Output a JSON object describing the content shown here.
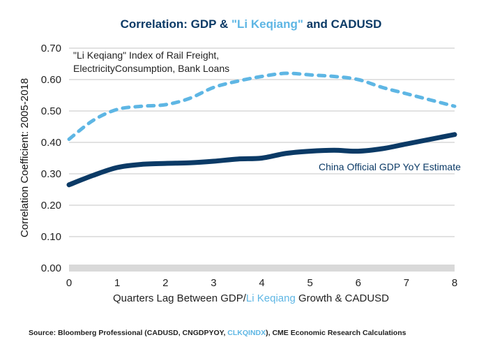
{
  "colors": {
    "dark_navy": "#0b3a66",
    "light_blue": "#5eb6e4",
    "grid": "#d9d9d9",
    "zero_band": "#d9d9d9",
    "text": "#222222"
  },
  "chart_data": {
    "type": "line",
    "title_parts": [
      {
        "text": "Correlation: GDP & ",
        "color": "dark_navy"
      },
      {
        "text": "\"Li Keqiang\"",
        "color": "light_blue"
      },
      {
        "text": " and CADUSD",
        "color": "dark_navy"
      }
    ],
    "xlabel_parts": [
      {
        "text": "Quarters Lag Between GDP/",
        "color": "text"
      },
      {
        "text": "Li Keqiang",
        "color": "light_blue"
      },
      {
        "text": " Growth & CADUSD",
        "color": "text"
      }
    ],
    "ylabel": "Correlation Coefficient: 2005-2018",
    "xlim": [
      0,
      8
    ],
    "ylim": [
      0,
      0.7
    ],
    "x_ticks": [
      "0",
      "1",
      "2",
      "3",
      "4",
      "5",
      "6",
      "7",
      "8"
    ],
    "y_ticks": [
      "0.00",
      "0.10",
      "0.20",
      "0.30",
      "0.40",
      "0.50",
      "0.60",
      "0.70"
    ],
    "grid": true,
    "x": [
      0,
      0.5,
      1,
      1.5,
      2,
      2.5,
      3,
      3.5,
      4,
      4.5,
      5,
      5.5,
      6,
      6.5,
      7,
      7.5,
      8
    ],
    "series": [
      {
        "name": "\"Li Keqiang\" Index of Rail Freight, ElectricityConsumption, Bank Loans",
        "style": "dashed",
        "color": "light_blue",
        "values": [
          0.41,
          0.47,
          0.505,
          0.515,
          0.52,
          0.54,
          0.575,
          0.595,
          0.61,
          0.62,
          0.615,
          0.61,
          0.6,
          0.575,
          0.555,
          0.535,
          0.515
        ]
      },
      {
        "name": "China Official GDP YoY Estimate",
        "style": "solid",
        "color": "dark_navy",
        "values": [
          0.265,
          0.295,
          0.32,
          0.33,
          0.333,
          0.335,
          0.34,
          0.347,
          0.35,
          0.365,
          0.372,
          0.375,
          0.372,
          0.38,
          0.395,
          0.41,
          0.425
        ]
      }
    ],
    "annotations": [
      {
        "lines": [
          "\"Li Keqiang\" Index of Rail Freight,",
          "ElectricityConsumption, Bank Loans"
        ],
        "color": "text",
        "position": "top-left"
      },
      {
        "lines": [
          "China Official GDP YoY Estimate"
        ],
        "color": "dark_navy",
        "position": "right, below GDP line"
      }
    ],
    "source_parts": [
      {
        "text": "Source: Bloomberg Professional (CADUSD, CNGDPYOY, ",
        "color": "text"
      },
      {
        "text": "CLKQINDX",
        "color": "light_blue"
      },
      {
        "text": "), CME Economic Research Calculations",
        "color": "text"
      }
    ]
  }
}
